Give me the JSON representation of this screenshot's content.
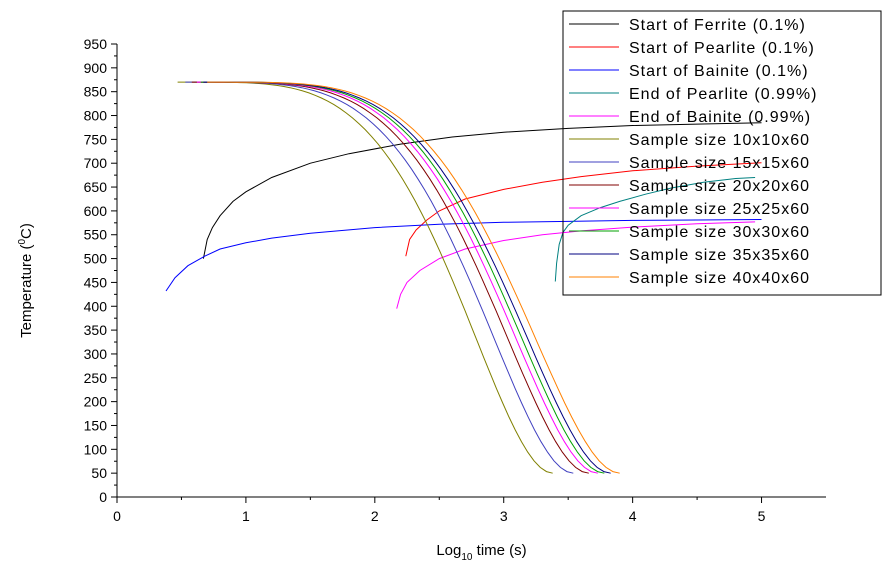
{
  "chart_data": {
    "type": "line",
    "title": "",
    "xlabel": {
      "main": "Log",
      "sub": "10",
      "rest": " time (s)"
    },
    "ylabel": {
      "main": "Temperature (",
      "sup": "0",
      "rest": "C)"
    },
    "xlim": [
      0,
      5.5
    ],
    "ylim": [
      0,
      950
    ],
    "xticks": [
      0,
      1,
      2,
      3,
      4,
      5
    ],
    "yticks": [
      0,
      50,
      100,
      150,
      200,
      250,
      300,
      350,
      400,
      450,
      500,
      550,
      600,
      650,
      700,
      750,
      800,
      850,
      900,
      950
    ],
    "grid": false,
    "legend_position": "top-right",
    "series": [
      {
        "name": "Start of Ferrite (0.1%)",
        "color": "#000000",
        "x": [
          0.67,
          0.7,
          0.74,
          0.8,
          0.9,
          1.0,
          1.2,
          1.5,
          1.8,
          2.2,
          2.6,
          3.0,
          3.5,
          4.0,
          4.5,
          5.0
        ],
        "y": [
          500,
          540,
          565,
          590,
          620,
          640,
          670,
          700,
          720,
          740,
          755,
          765,
          773,
          779,
          782,
          785
        ]
      },
      {
        "name": "Start of Pearlite (0.1%)",
        "color": "#ff0000",
        "x": [
          2.24,
          2.27,
          2.32,
          2.4,
          2.5,
          2.7,
          3.0,
          3.3,
          3.6,
          4.0,
          4.5,
          5.0
        ],
        "y": [
          505,
          540,
          560,
          580,
          600,
          625,
          645,
          660,
          672,
          684,
          694,
          701
        ]
      },
      {
        "name": "Start of Bainite (0.1%)",
        "color": "#0000ff",
        "x": [
          0.38,
          0.45,
          0.55,
          0.68,
          0.8,
          1.0,
          1.2,
          1.5,
          2.0,
          2.5,
          3.0,
          3.5,
          4.0,
          4.5,
          5.0
        ],
        "y": [
          432,
          460,
          485,
          505,
          520,
          533,
          543,
          553,
          565,
          572,
          576,
          578,
          580,
          581,
          582
        ]
      },
      {
        "name": "End of Pearlite (0.99%)",
        "color": "#008080",
        "x": [
          3.4,
          3.41,
          3.43,
          3.46,
          3.5,
          3.6,
          3.75,
          3.9,
          4.1,
          4.3,
          4.55,
          4.8,
          4.95
        ],
        "y": [
          452,
          490,
          530,
          555,
          570,
          590,
          607,
          620,
          635,
          648,
          660,
          668,
          670
        ]
      },
      {
        "name": "End of Bainite (0.99%)",
        "color": "#ff00ff",
        "x": [
          2.17,
          2.2,
          2.25,
          2.35,
          2.5,
          2.7,
          3.0,
          3.3,
          3.6,
          4.0,
          4.5,
          4.95
        ],
        "y": [
          395,
          425,
          450,
          475,
          500,
          520,
          538,
          550,
          558,
          566,
          573,
          577
        ]
      },
      {
        "name": "Sample size 10x10x60",
        "color": "#808000",
        "x0": 0.47,
        "x_end": 3.38
      },
      {
        "name": "Sample size 15x15x60",
        "color": "#4040c0",
        "x0": 0.53,
        "x_end": 3.54
      },
      {
        "name": "Sample size 20x20x60",
        "color": "#800000",
        "x0": 0.58,
        "x_end": 3.66
      },
      {
        "name": "Sample size 25x25x60",
        "color": "#ff00ff",
        "x0": 0.62,
        "x_end": 3.73
      },
      {
        "name": "Sample size 30x30x60",
        "color": "#00a000",
        "x0": 0.65,
        "x_end": 3.78
      },
      {
        "name": "Sample size 35x35x60",
        "color": "#000080",
        "x0": 0.67,
        "x_end": 3.83
      },
      {
        "name": "Sample size 40x40x60",
        "color": "#ff8000",
        "x0": 0.7,
        "x_end": 3.9
      }
    ]
  }
}
